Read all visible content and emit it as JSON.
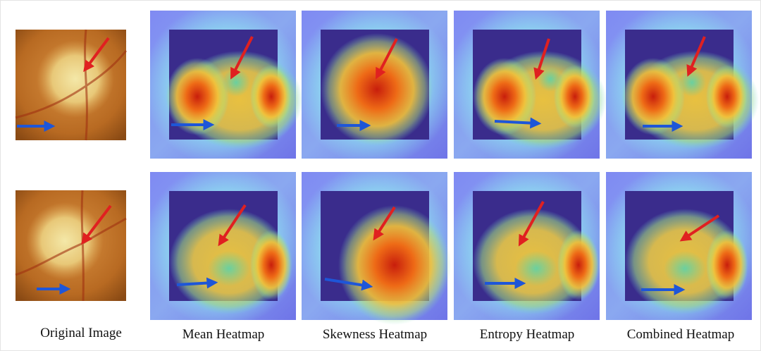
{
  "captions": [
    "Original Image",
    "Mean Heatmap",
    "Skewness Heatmap",
    "Entropy Heatmap",
    "Combined Heatmap"
  ]
}
